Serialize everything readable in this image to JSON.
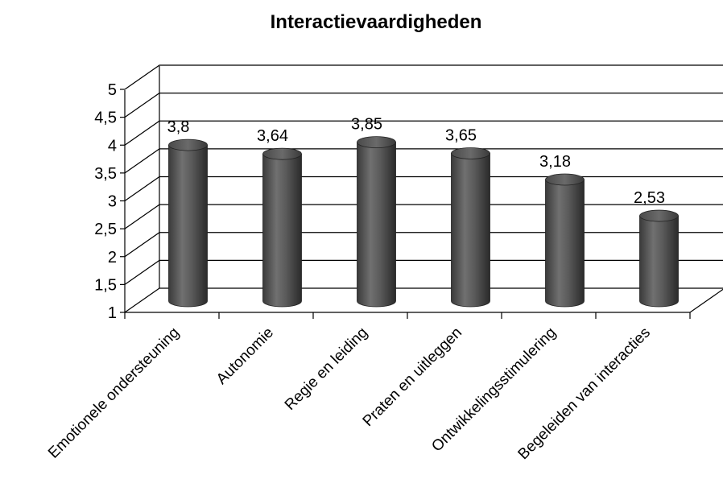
{
  "chart_data": {
    "type": "bar",
    "title": "Interactievaardigheden",
    "categories": [
      "Emotionele ondersteuning",
      "Autonomie",
      "Regie en leiding",
      "Praten en uitleggen",
      "Ontwikkelingsstimulering",
      "Begeleiden van interacties"
    ],
    "values": [
      3.8,
      3.64,
      3.85,
      3.65,
      3.18,
      2.53
    ],
    "value_labels": [
      "3,8",
      "3,64",
      "3,85",
      "3,65",
      "3,18",
      "2,53"
    ],
    "ylim": [
      1,
      5
    ],
    "yticks": [
      1,
      1.5,
      2,
      2.5,
      3,
      3.5,
      4,
      4.5,
      5
    ],
    "ytick_labels": [
      "1",
      "1,5",
      "2",
      "2,5",
      "3",
      "3,5",
      "4",
      "4,5",
      "5"
    ],
    "xlabel": "",
    "ylabel": "",
    "grid": true,
    "style": "3d-cylinder",
    "colors": {
      "bar": "#555555",
      "grid": "#000000"
    }
  }
}
